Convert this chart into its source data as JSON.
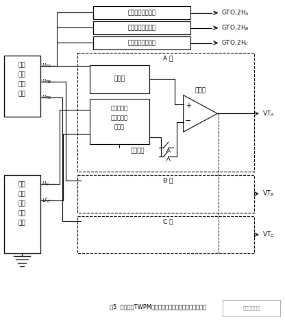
{
  "title_fig": "图5  三相基本TWPM直流电流源逆变器的控制电路示意图",
  "bg_color": "#ffffff",
  "pulse_boxes": [
    "正负半周脉冲形成",
    "正负半周脉冲形成",
    "正负半周脉冲形成"
  ],
  "gto_labels": [
    "GTO,2H$_A$",
    "GTO,2H$_B$",
    "GTO,2H$_C$"
  ],
  "left_box1_lines": [
    "三相",
    "梯形",
    "波发",
    "生器"
  ],
  "left_box2_lines": [
    "两组",
    "载波",
    "三角",
    "波发",
    "生器"
  ],
  "rect_label": "整流器",
  "ctrl_label_lines": [
    "两组载波三",
    "角波切换控",
    "制电路"
  ],
  "carrier_switch": "载波切换",
  "comparator_label": "比较器",
  "phase_labels": [
    "A 相",
    "B 相",
    "C 相"
  ],
  "vt_labels": [
    "VT$_A$",
    "VT$_B$",
    "VT$_C$"
  ],
  "u_labels": [
    "$u_{TA}$",
    "$u_{TB}$",
    "$u_{TC}$"
  ],
  "uc_labels": [
    "$u_C$",
    "$u'_C$"
  ]
}
